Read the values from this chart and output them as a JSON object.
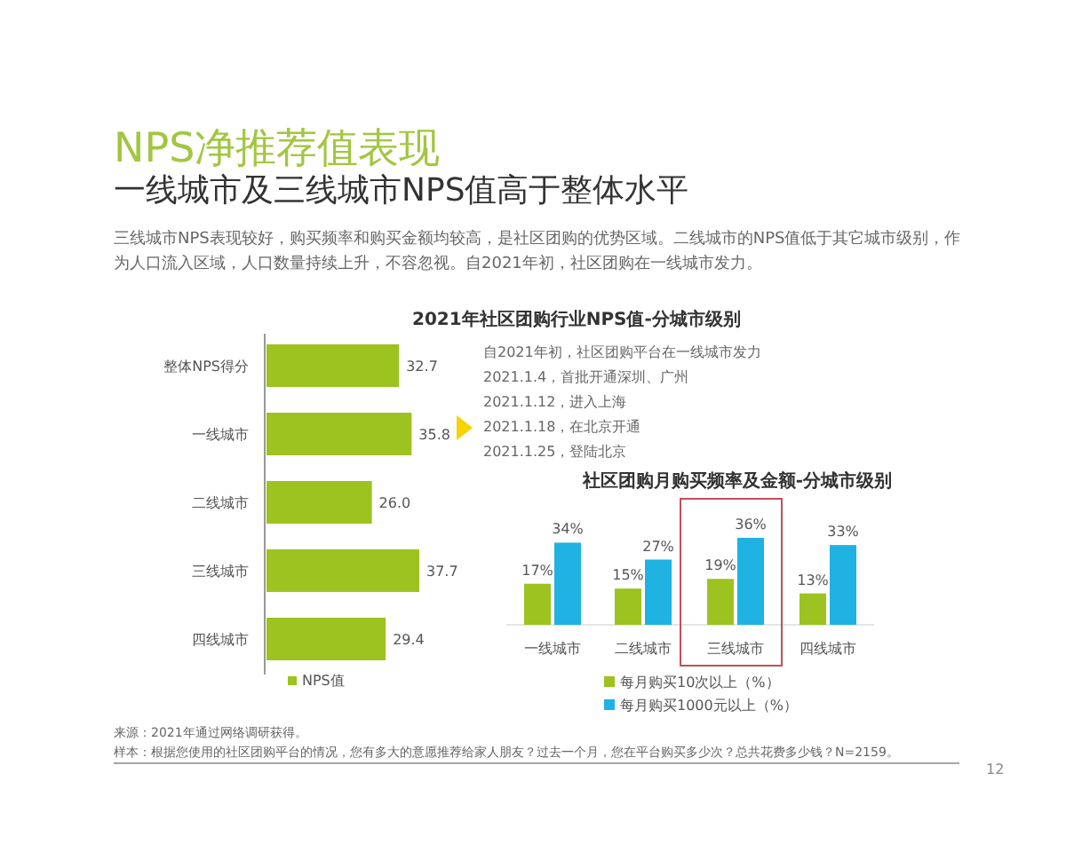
{
  "chart_data": [
    {
      "type": "other",
      "title": "NPS净推荐值表现",
      "subtitle": "一线城市及三线城市NPS值高于整体水平",
      "annotations": [
        "三线城市NPS表现较好，购买频率和购买金额均较高，是社区团购的优势区域。二线城市的NPS值低于其它城市级别，作为人口流入区域，人口数量持续上升，不容忽视。自2021年初，社区团购在一线城市发力。",
        "来源：2021年通过网络调研获得。",
        "样本：根据您使用的社区团购平台的情况，您有多大的意愿推荐给家人朋友？过去一个月，您在平台购买多少次？总共花费多少钱？N=2159。",
        "12"
      ]
    },
    {
      "type": "bar",
      "orientation": "horizontal",
      "title": "2021年社区团购行业NPS值-分城市级别",
      "categories": [
        "整体NPS得分",
        "一线城市",
        "二线城市",
        "三线城市",
        "四线城市"
      ],
      "series": [
        {
          "name": "NPS值",
          "color": "#9cc31f",
          "values": [
            32.7,
            35.8,
            26.0,
            37.7,
            29.4
          ],
          "value_labels": [
            "32.7",
            "35.8",
            "26.0",
            "37.7",
            "29.4"
          ]
        }
      ],
      "legend": "bottom",
      "annotations": [
        "自2021年初，社区团购平台在一线城市发力",
        "2021.1.4，首批开通深圳、广州",
        "2021.1.12，进入上海",
        "2021.1.18，在北京开通",
        "2021.1.25，登陆北京"
      ]
    },
    {
      "type": "bar",
      "title": "社区团购月购买频率及金额-分城市级别",
      "categories": [
        "一线城市",
        "二线城市",
        "三线城市",
        "四线城市"
      ],
      "series": [
        {
          "name": "每月购买10次以上（%）",
          "color": "#9cc31f",
          "values": [
            17,
            15,
            19,
            13
          ],
          "value_labels": [
            "17%",
            "15%",
            "19%",
            "13%"
          ]
        },
        {
          "name": "每月购买1000元以上（%）",
          "color": "#1fb2e3",
          "values": [
            34,
            27,
            36,
            33
          ],
          "value_labels": [
            "34%",
            "27%",
            "36%",
            "33%"
          ]
        }
      ],
      "legend": "bottom"
    }
  ]
}
